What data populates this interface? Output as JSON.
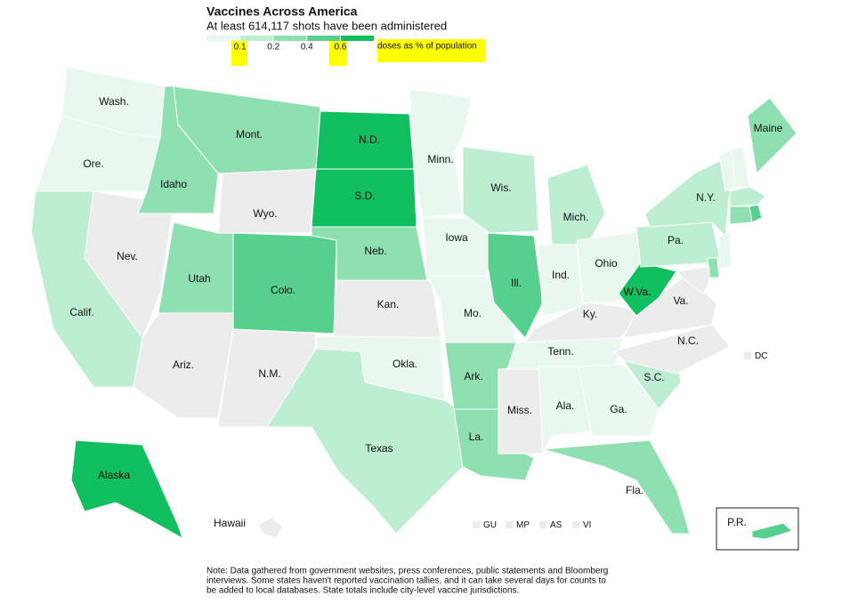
{
  "title": "Vaccines Across America",
  "subtitle": "At least 614,117 shots have been administered",
  "legend": {
    "breaks": [
      0.1,
      0.2,
      0.4,
      0.6
    ],
    "colors": [
      "#e8f8ef",
      "#bdeed2",
      "#8fe0b1",
      "#56d08c",
      "#12bf60"
    ],
    "label": "doses as % of population",
    "no_data_color": "#ececec"
  },
  "states": [
    {
      "label": "Wash.",
      "value": 0.05
    },
    {
      "label": "Ore.",
      "value": 0.05
    },
    {
      "label": "Calif.",
      "value": 0.15
    },
    {
      "label": "Nev.",
      "value": null
    },
    {
      "label": "Idaho",
      "value": 0.3
    },
    {
      "label": "Mont.",
      "value": 0.3
    },
    {
      "label": "Wyo.",
      "value": null
    },
    {
      "label": "Utah",
      "value": 0.3
    },
    {
      "label": "Colo.",
      "value": 0.5
    },
    {
      "label": "Ariz.",
      "value": null
    },
    {
      "label": "N.M.",
      "value": null
    },
    {
      "label": "N.D.",
      "value": 0.7
    },
    {
      "label": "S.D.",
      "value": 0.7
    },
    {
      "label": "Neb.",
      "value": 0.3
    },
    {
      "label": "Kan.",
      "value": null
    },
    {
      "label": "Okla.",
      "value": 0.05
    },
    {
      "label": "Texas",
      "value": 0.15
    },
    {
      "label": "Minn.",
      "value": 0.05
    },
    {
      "label": "Iowa",
      "value": 0.05
    },
    {
      "label": "Mo.",
      "value": 0.05
    },
    {
      "label": "Ark.",
      "value": 0.3
    },
    {
      "label": "La.",
      "value": 0.3
    },
    {
      "label": "Miss.",
      "value": null
    },
    {
      "label": "Wis.",
      "value": 0.15
    },
    {
      "label": "Ill.",
      "value": 0.5
    },
    {
      "label": "Mich.",
      "value": 0.15
    },
    {
      "label": "Ind.",
      "value": 0.05
    },
    {
      "label": "Ohio",
      "value": 0.05
    },
    {
      "label": "Ky.",
      "value": null
    },
    {
      "label": "Tenn.",
      "value": 0.05
    },
    {
      "label": "Ala.",
      "value": 0.05
    },
    {
      "label": "Ga.",
      "value": 0.05
    },
    {
      "label": "Fla.",
      "value": 0.3
    },
    {
      "label": "S.C.",
      "value": 0.15
    },
    {
      "label": "N.C.",
      "value": null
    },
    {
      "label": "Va.",
      "value": null
    },
    {
      "label": "W.Va.",
      "value": 0.7
    },
    {
      "label": "Pa.",
      "value": 0.15
    },
    {
      "label": "N.Y.",
      "value": 0.15
    },
    {
      "label": "Maine",
      "value": 0.3
    },
    {
      "label": "Alaska",
      "value": 0.7
    },
    {
      "label": "Hawaii",
      "value": null
    },
    {
      "label": "P.R.",
      "value": 0.5
    },
    {
      "label": null,
      "value": 0.05
    },
    {
      "label": null,
      "value": 0.05
    },
    {
      "label": null,
      "value": 0.15
    },
    {
      "label": null,
      "value": 0.3
    },
    {
      "label": null,
      "value": 0.5
    },
    {
      "label": null,
      "value": 0.05
    },
    {
      "label": null,
      "value": 0.3
    },
    {
      "label": null,
      "value": null
    }
  ],
  "territories": [
    "DC",
    "GU",
    "MP",
    "AS",
    "VI"
  ],
  "note": [
    "Note: Data gathered from government websites, press conferences, public statements and Bloomberg",
    "interviews. Some states haven't reported vaccination tallies, and it can take several days for counts to",
    "be added to local databases. State totals include city-level vaccine jurisdictions."
  ]
}
